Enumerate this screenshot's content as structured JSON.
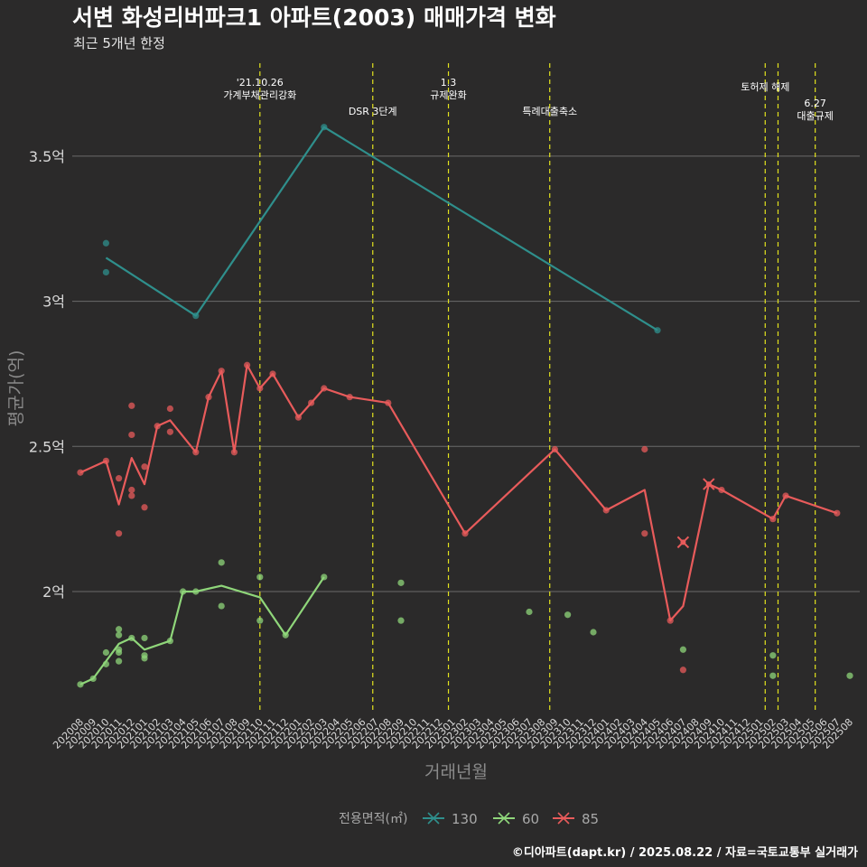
{
  "chart_data": {
    "type": "line",
    "title": "서변 화성리버파크1 아파트(2003) 매매가격 변화",
    "subtitle": "최근 5개년 한정",
    "xlabel": "거래년월",
    "ylabel": "평균가(억)",
    "caption": "©디아파트(dapt.kr) / 2025.08.22 / 자료=국토교통부 실거래가",
    "categories": [
      "202008",
      "202009",
      "202010",
      "202011",
      "202012",
      "202101",
      "202102",
      "202103",
      "202104",
      "202105",
      "202106",
      "202107",
      "202108",
      "202109",
      "202110",
      "202111",
      "202112",
      "202201",
      "202202",
      "202203",
      "202204",
      "202205",
      "202206",
      "202207",
      "202208",
      "202209",
      "202210",
      "202211",
      "202212",
      "202301",
      "202302",
      "202303",
      "202304",
      "202305",
      "202306",
      "202307",
      "202308",
      "202309",
      "202310",
      "202311",
      "202312",
      "202401",
      "202402",
      "202403",
      "202404",
      "202405",
      "202406",
      "202407",
      "202408",
      "202409",
      "202410",
      "202411",
      "202412",
      "202501",
      "202502",
      "202503",
      "202504",
      "202505",
      "202506",
      "202507",
      "202508"
    ],
    "yticks": [
      {
        "value": 2.0,
        "label": "2억"
      },
      {
        "value": 2.5,
        "label": "2.5억"
      },
      {
        "value": 3.0,
        "label": "3억"
      },
      {
        "value": 3.5,
        "label": "3.5억"
      }
    ],
    "ylim": [
      1.58,
      3.82
    ],
    "grid": "horizontal",
    "legend": {
      "title": "전용면적(㎡)",
      "position": "bottom"
    },
    "series": [
      {
        "name": "130",
        "color": "#2f8f8c",
        "line": [
          [
            "202010",
            3.15
          ],
          [
            "202105",
            2.95
          ],
          [
            "202203",
            3.6
          ],
          [
            "202405",
            2.9
          ]
        ],
        "points": [
          [
            "202010",
            3.2
          ],
          [
            "202010",
            3.1
          ],
          [
            "202105",
            2.95
          ],
          [
            "202203",
            3.6
          ],
          [
            "202405",
            2.9
          ]
        ]
      },
      {
        "name": "60",
        "color": "#8fd67a",
        "line": [
          [
            "202008",
            1.68
          ],
          [
            "202009",
            1.7
          ],
          [
            "202010",
            1.76
          ],
          [
            "202011",
            1.82
          ],
          [
            "202012",
            1.84
          ],
          [
            "202101",
            1.8
          ],
          [
            "202103",
            1.83
          ],
          [
            "202104",
            2.0
          ],
          [
            "202105",
            2.0
          ],
          [
            "202107",
            2.02
          ],
          [
            "202110",
            1.98
          ],
          [
            "202112",
            1.85
          ],
          [
            "202203",
            2.05
          ]
        ],
        "points": [
          [
            "202008",
            1.68
          ],
          [
            "202009",
            1.7
          ],
          [
            "202010",
            1.79
          ],
          [
            "202010",
            1.75
          ],
          [
            "202011",
            1.87
          ],
          [
            "202011",
            1.85
          ],
          [
            "202011",
            1.8
          ],
          [
            "202011",
            1.79
          ],
          [
            "202011",
            1.76
          ],
          [
            "202012",
            1.84
          ],
          [
            "202101",
            1.84
          ],
          [
            "202101",
            1.78
          ],
          [
            "202101",
            1.77
          ],
          [
            "202103",
            1.83
          ],
          [
            "202104",
            2.0
          ],
          [
            "202105",
            2.0
          ],
          [
            "202107",
            2.1
          ],
          [
            "202107",
            1.95
          ],
          [
            "202110",
            2.05
          ],
          [
            "202110",
            1.9
          ],
          [
            "202112",
            1.85
          ],
          [
            "202203",
            2.05
          ],
          [
            "202209",
            2.03
          ],
          [
            "202209",
            1.9
          ],
          [
            "202307",
            1.93
          ],
          [
            "202310",
            1.92
          ],
          [
            "202312",
            1.86
          ],
          [
            "202407",
            1.8
          ],
          [
            "202502",
            1.78
          ],
          [
            "202502",
            1.71
          ],
          [
            "202508",
            1.71
          ]
        ]
      },
      {
        "name": "85",
        "color": "#e85b5b",
        "line": [
          [
            "202008",
            2.41
          ],
          [
            "202010",
            2.45
          ],
          [
            "202011",
            2.3
          ],
          [
            "202012",
            2.46
          ],
          [
            "202101",
            2.37
          ],
          [
            "202102",
            2.57
          ],
          [
            "202103",
            2.59
          ],
          [
            "202105",
            2.48
          ],
          [
            "202106",
            2.67
          ],
          [
            "202107",
            2.76
          ],
          [
            "202108",
            2.48
          ],
          [
            "202109",
            2.78
          ],
          [
            "202110",
            2.7
          ],
          [
            "202111",
            2.75
          ],
          [
            "202201",
            2.6
          ],
          [
            "202202",
            2.65
          ],
          [
            "202203",
            2.7
          ],
          [
            "202205",
            2.67
          ],
          [
            "202208",
            2.65
          ],
          [
            "202302",
            2.2
          ],
          [
            "202309",
            2.49
          ],
          [
            "202401",
            2.28
          ],
          [
            "202404",
            2.35
          ],
          [
            "202406",
            1.9
          ],
          [
            "202407",
            1.95
          ],
          [
            "202409",
            2.37
          ],
          [
            "202410",
            2.35
          ],
          [
            "202502",
            2.25
          ],
          [
            "202503",
            2.33
          ],
          [
            "202507",
            2.27
          ]
        ],
        "points": [
          [
            "202008",
            2.41
          ],
          [
            "202010",
            2.45
          ],
          [
            "202011",
            2.39
          ],
          [
            "202011",
            2.2
          ],
          [
            "202012",
            2.64
          ],
          [
            "202012",
            2.54
          ],
          [
            "202012",
            2.35
          ],
          [
            "202012",
            2.33
          ],
          [
            "202101",
            2.43
          ],
          [
            "202101",
            2.29
          ],
          [
            "202102",
            2.57
          ],
          [
            "202103",
            2.63
          ],
          [
            "202103",
            2.55
          ],
          [
            "202105",
            2.48
          ],
          [
            "202106",
            2.67
          ],
          [
            "202107",
            2.76
          ],
          [
            "202108",
            2.48
          ],
          [
            "202109",
            2.78
          ],
          [
            "202110",
            2.7
          ],
          [
            "202111",
            2.75
          ],
          [
            "202201",
            2.6
          ],
          [
            "202202",
            2.65
          ],
          [
            "202203",
            2.7
          ],
          [
            "202205",
            2.67
          ],
          [
            "202208",
            2.65
          ],
          [
            "202302",
            2.2
          ],
          [
            "202309",
            2.49
          ],
          [
            "202401",
            2.28
          ],
          [
            "202404",
            2.49
          ],
          [
            "202404",
            2.2
          ],
          [
            "202406",
            1.9
          ],
          [
            "202407",
            1.73
          ],
          [
            "202410",
            2.35
          ],
          [
            "202502",
            2.25
          ],
          [
            "202503",
            2.33
          ],
          [
            "202507",
            2.27
          ]
        ],
        "markers_x": [
          [
            "202407",
            2.17
          ],
          [
            "202409",
            2.37
          ]
        ]
      }
    ],
    "events": [
      {
        "x": 14.0,
        "lines": [
          "'21.10.26",
          "가계부채관리강화"
        ],
        "row": 0
      },
      {
        "x": 22.8,
        "lines": [
          "DSR 3단계"
        ],
        "row": 2
      },
      {
        "x": 28.7,
        "lines": [
          "1.3",
          "규제완화"
        ],
        "row": 0
      },
      {
        "x": 36.6,
        "lines": [
          "특례대출축소"
        ],
        "row": 2
      },
      {
        "x": 53.4,
        "lines": [
          "토허제 해제"
        ],
        "row": 1
      },
      {
        "x": 54.4,
        "lines": [],
        "row": 1
      },
      {
        "x": 57.3,
        "lines": [
          "6.27",
          "대출규제"
        ],
        "row": 3
      }
    ]
  }
}
